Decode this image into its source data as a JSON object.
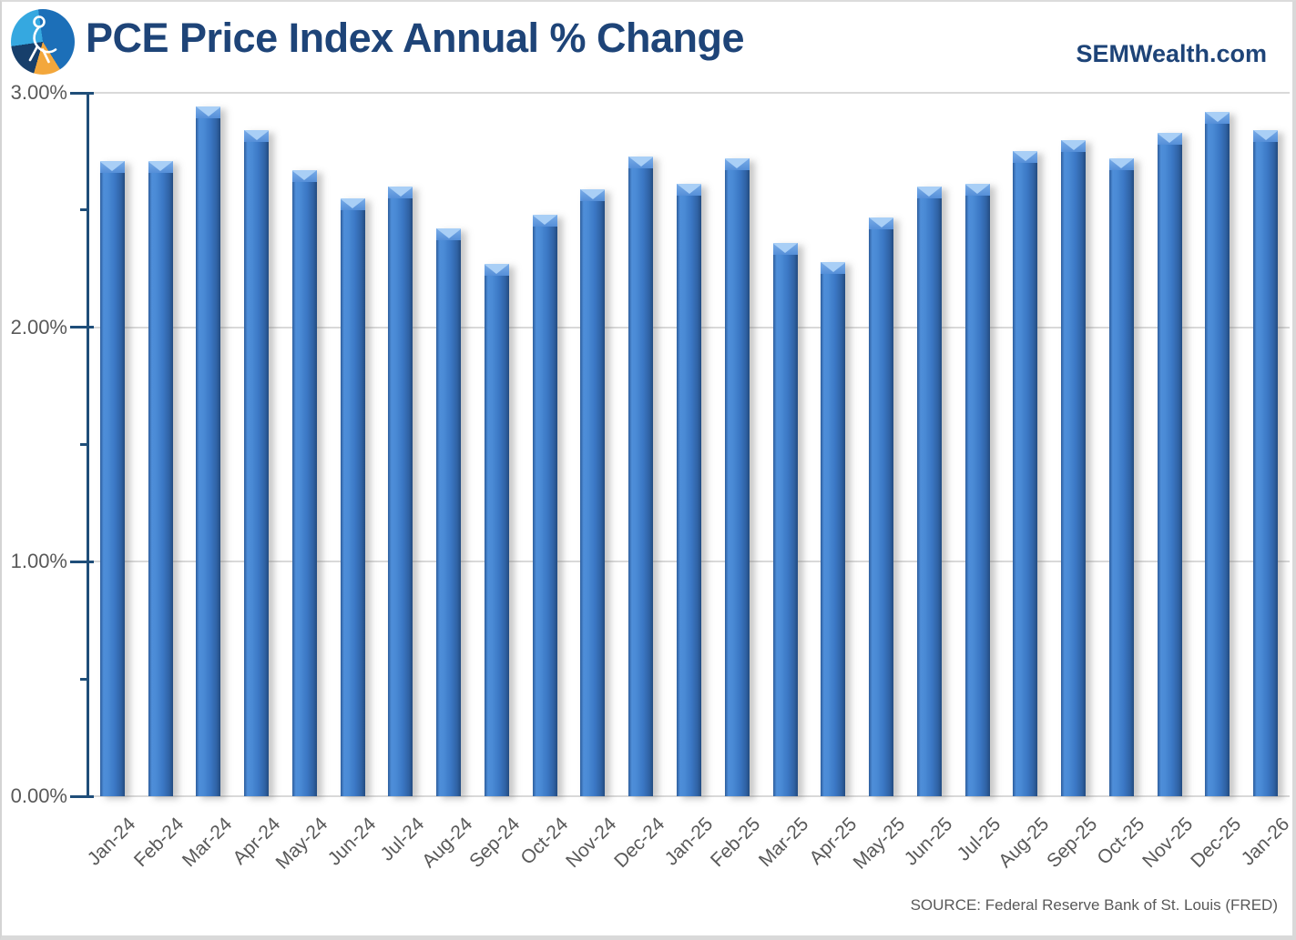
{
  "header": {
    "title": "PCE Price Index Annual % Change",
    "brand": "SEMWealth.com",
    "logo_icon": "pie-circle-with-leaping-figure"
  },
  "footer": {
    "source": "SOURCE: Federal Reserve Bank of St. Louis (FRED)"
  },
  "colors": {
    "title": "#1E4478",
    "axis": "#1F4E79",
    "grid": "#D9D9D9",
    "text_gray": "#595959",
    "bar_main": "#3B77C4",
    "bar_highlight": "#A9CFF6",
    "bar_dark": "#234B80",
    "logo_lightblue": "#35A8E0",
    "logo_midblue": "#1C6FB8",
    "logo_navy": "#173F6B",
    "logo_orange": "#F3A73C",
    "background": "#FFFFFF"
  },
  "chart_data": {
    "type": "bar",
    "title": "PCE Price Index Annual % Change",
    "xlabel": "",
    "ylabel": "",
    "ylim": [
      0,
      3
    ],
    "ytick_major_step": 1.0,
    "ytick_minor_step": 0.5,
    "ytick_labels": [
      "0.00%",
      "1.00%",
      "2.00%",
      "3.00%"
    ],
    "grid": "horizontal-major",
    "legend": "none",
    "categories": [
      "Jan-24",
      "Feb-24",
      "Mar-24",
      "Apr-24",
      "May-24",
      "Jun-24",
      "Jul-24",
      "Aug-24",
      "Sep-24",
      "Oct-24",
      "Nov-24",
      "Dec-24",
      "Jan-25",
      "Feb-25",
      "Mar-25",
      "Apr-25",
      "May-25",
      "Jun-25",
      "Jul-25",
      "Aug-25",
      "Sep-25",
      "Oct-25",
      "Nov-25",
      "Dec-25",
      "Jan-26"
    ],
    "values": [
      2.71,
      2.71,
      2.94,
      2.84,
      2.67,
      2.55,
      2.6,
      2.42,
      2.27,
      2.48,
      2.59,
      2.73,
      2.61,
      2.72,
      2.36,
      2.28,
      2.47,
      2.6,
      2.61,
      2.75,
      2.8,
      2.72,
      2.83,
      2.92,
      2.84
    ]
  }
}
